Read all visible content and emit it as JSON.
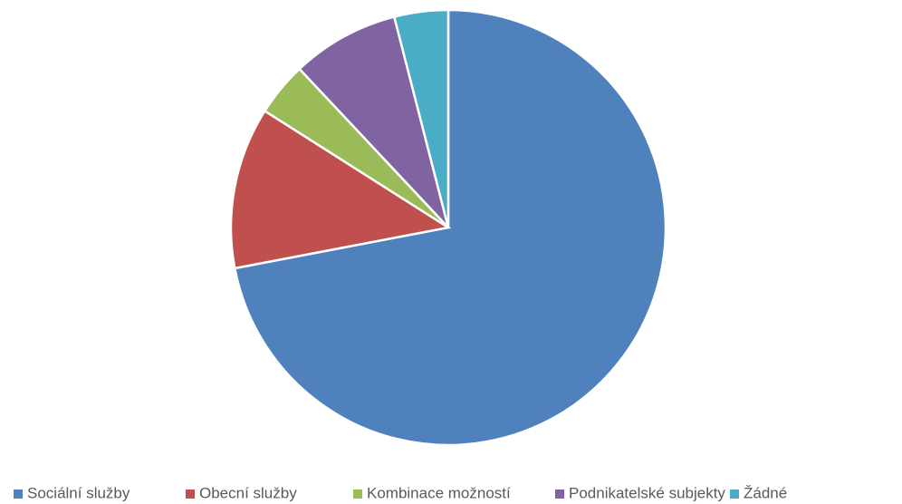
{
  "chart_data": {
    "type": "pie",
    "categories": [
      "Sociální služby",
      "Obecní služby",
      "Kombinace možností",
      "Podnikatelské subjekty",
      "Žádné"
    ],
    "values": [
      72,
      12,
      4,
      8,
      4
    ],
    "colors": [
      "#4f81bd",
      "#c0504d",
      "#9bbb59",
      "#8064a2",
      "#4bacc6"
    ],
    "legend": "bottom"
  }
}
